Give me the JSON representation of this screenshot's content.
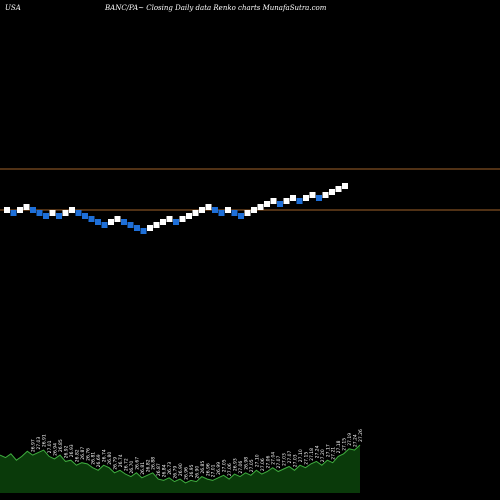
{
  "header": {
    "country": "USA",
    "title": "BANC/PA~  Closing Daily data  Renko  charts MunafaSutra.com"
  },
  "colors": {
    "background": "#000000",
    "up_brick": "#ffffff",
    "down_brick": "#1e6fd8",
    "level_line": "#a0622a",
    "volume_fill": "#0a3a0a",
    "volume_line": "#3fae3f",
    "price_label": "#ffffff"
  },
  "chart_data": {
    "type": "renko",
    "direction": [
      "up",
      "down",
      "up",
      "up",
      "down",
      "down",
      "down",
      "up",
      "down",
      "up",
      "up",
      "down",
      "down",
      "down",
      "down",
      "down",
      "up",
      "up",
      "down",
      "down",
      "down",
      "down",
      "up",
      "up",
      "up",
      "up",
      "down",
      "up",
      "up",
      "up",
      "up",
      "up",
      "down",
      "down",
      "up",
      "down",
      "down",
      "up",
      "up",
      "up",
      "up",
      "up",
      "down",
      "up",
      "up",
      "down",
      "up",
      "up",
      "down",
      "up",
      "up",
      "up",
      "up"
    ],
    "levels": [
      36,
      27
    ],
    "label_start": 6,
    "label_series": [
      "26.97",
      "27.03",
      "26.91",
      "27.01",
      "26.94",
      "26.85",
      "26.92",
      "26.93",
      "26.82",
      "26.87",
      "26.76",
      "26.81",
      "26.69",
      "26.74",
      "26.80",
      "26.79",
      "26.74",
      "26.72",
      "26.70",
      "26.67",
      "26.81",
      "26.82",
      "26.88",
      "26.87",
      "26.84",
      "26.73",
      "26.79",
      "26.90",
      "26.96",
      "26.95",
      "26.90",
      "26.85",
      "26.96",
      "27.01",
      "26.99",
      "27.05",
      "27.06",
      "26.93",
      "27.06",
      "26.98",
      "27.05",
      "27.10",
      "27.06",
      "27.06",
      "27.04",
      "27.07",
      "27.03",
      "27.07",
      "27.03",
      "27.10",
      "27.15",
      "27.18",
      "27.24",
      "27.20",
      "27.17",
      "27.21",
      "27.18",
      "27.15",
      "27.19",
      "27.24",
      "27.26",
      "27.34",
      "27.28",
      "27.41",
      "27.36",
      "27.37",
      "27.47"
    ],
    "volume": [
      3.0,
      2.8,
      3.1,
      2.6,
      2.9,
      3.3,
      3.0,
      3.2,
      3.4,
      2.9,
      2.7,
      3.0,
      2.5,
      2.6,
      2.2,
      2.4,
      2.3,
      2.0,
      1.8,
      2.2,
      2.0,
      1.6,
      1.8,
      1.5,
      1.3,
      1.6,
      1.2,
      1.4,
      1.6,
      1.1,
      1.0,
      1.2,
      0.9,
      1.1,
      0.8,
      1.0,
      0.9,
      1.3,
      1.1,
      1.0,
      1.2,
      1.4,
      1.1,
      1.5,
      1.3,
      1.6,
      1.4,
      1.8,
      1.5,
      1.7,
      2.0,
      1.7,
      1.9,
      2.1,
      1.8,
      2.2,
      2.0,
      2.3,
      2.5,
      2.2,
      2.6,
      2.4,
      2.9,
      3.1,
      3.5,
      3.4,
      3.8
    ]
  }
}
